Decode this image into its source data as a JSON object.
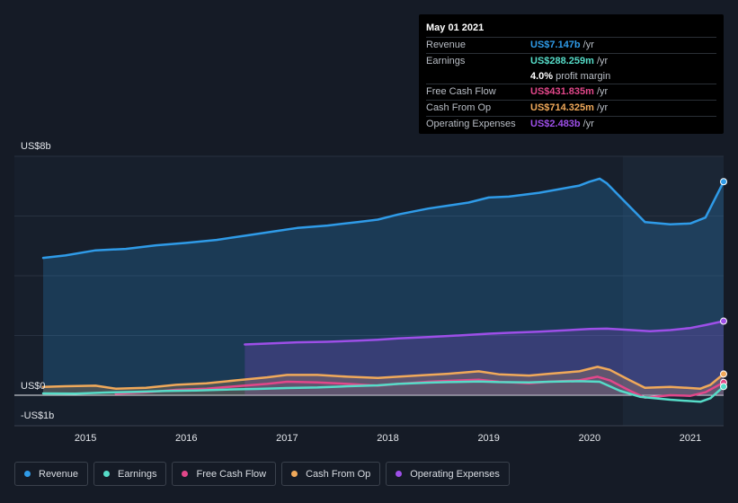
{
  "tooltip": {
    "date": "May 01 2021",
    "rows": [
      {
        "label": "Revenue",
        "value": "US$7.147b",
        "unit": "/yr",
        "color": "#2f9be8"
      },
      {
        "label": "Earnings",
        "value": "US$288.259m",
        "unit": "/yr",
        "color": "#56dcc8"
      },
      {
        "label": "",
        "value": "4.0%",
        "unit": "profit margin",
        "color": "#ffffff"
      },
      {
        "label": "Free Cash Flow",
        "value": "US$431.835m",
        "unit": "/yr",
        "color": "#e2478a"
      },
      {
        "label": "Cash From Op",
        "value": "US$714.325m",
        "unit": "/yr",
        "color": "#f0a95a"
      },
      {
        "label": "Operating Expenses",
        "value": "US$2.483b",
        "unit": "/yr",
        "color": "#9d4fe8"
      }
    ]
  },
  "legend": [
    {
      "label": "Revenue",
      "color": "#2f9be8"
    },
    {
      "label": "Earnings",
      "color": "#56dcc8"
    },
    {
      "label": "Free Cash Flow",
      "color": "#e2478a"
    },
    {
      "label": "Cash From Op",
      "color": "#f0a95a"
    },
    {
      "label": "Operating Expenses",
      "color": "#9d4fe8"
    }
  ],
  "chart_data": {
    "type": "area",
    "y_labels": [
      {
        "text": "US$8b",
        "value": 8
      },
      {
        "text": "US$0",
        "value": 0
      },
      {
        "text": "-US$1b",
        "value": -1
      }
    ],
    "ylim": [
      -1,
      8
    ],
    "x_ticks": [
      {
        "text": "2015",
        "value": 2015.0
      },
      {
        "text": "2016",
        "value": 2016.0
      },
      {
        "text": "2017",
        "value": 2017.0
      },
      {
        "text": "2018",
        "value": 2018.0
      },
      {
        "text": "2019",
        "value": 2019.0
      },
      {
        "text": "2020",
        "value": 2020.0
      },
      {
        "text": "2021",
        "value": 2021.0
      }
    ],
    "xlim": [
      2014.58,
      2021.33
    ],
    "forecast_start": 2020.33,
    "units": "US$ billions",
    "series": [
      {
        "name": "Revenue",
        "color": "#2f9be8",
        "fill": true,
        "points": [
          [
            2014.58,
            4.6
          ],
          [
            2014.8,
            4.68
          ],
          [
            2015.1,
            4.85
          ],
          [
            2015.4,
            4.9
          ],
          [
            2015.7,
            5.02
          ],
          [
            2016.0,
            5.1
          ],
          [
            2016.3,
            5.2
          ],
          [
            2016.6,
            5.35
          ],
          [
            2016.9,
            5.5
          ],
          [
            2017.1,
            5.6
          ],
          [
            2017.4,
            5.68
          ],
          [
            2017.7,
            5.8
          ],
          [
            2017.9,
            5.88
          ],
          [
            2018.1,
            6.05
          ],
          [
            2018.4,
            6.25
          ],
          [
            2018.6,
            6.35
          ],
          [
            2018.8,
            6.45
          ],
          [
            2019.0,
            6.62
          ],
          [
            2019.2,
            6.65
          ],
          [
            2019.5,
            6.78
          ],
          [
            2019.7,
            6.9
          ],
          [
            2019.9,
            7.02
          ],
          [
            2020.0,
            7.15
          ],
          [
            2020.1,
            7.25
          ],
          [
            2020.17,
            7.1
          ],
          [
            2020.33,
            6.55
          ],
          [
            2020.55,
            5.8
          ],
          [
            2020.8,
            5.72
          ],
          [
            2021.0,
            5.75
          ],
          [
            2021.15,
            5.95
          ],
          [
            2021.33,
            7.15
          ]
        ]
      },
      {
        "name": "Operating Expenses",
        "color": "#9d4fe8",
        "fill": true,
        "points": [
          [
            2016.58,
            1.7
          ],
          [
            2016.8,
            1.73
          ],
          [
            2017.1,
            1.77
          ],
          [
            2017.4,
            1.79
          ],
          [
            2017.7,
            1.83
          ],
          [
            2017.9,
            1.86
          ],
          [
            2018.1,
            1.9
          ],
          [
            2018.4,
            1.95
          ],
          [
            2018.7,
            2.0
          ],
          [
            2019.0,
            2.06
          ],
          [
            2019.2,
            2.09
          ],
          [
            2019.5,
            2.13
          ],
          [
            2019.8,
            2.18
          ],
          [
            2020.0,
            2.22
          ],
          [
            2020.17,
            2.23
          ],
          [
            2020.33,
            2.2
          ],
          [
            2020.6,
            2.14
          ],
          [
            2020.8,
            2.18
          ],
          [
            2021.0,
            2.25
          ],
          [
            2021.15,
            2.35
          ],
          [
            2021.33,
            2.48
          ]
        ]
      },
      {
        "name": "Cash From Op",
        "color": "#f0a95a",
        "fill": true,
        "points": [
          [
            2014.58,
            0.28
          ],
          [
            2014.8,
            0.3
          ],
          [
            2015.1,
            0.32
          ],
          [
            2015.3,
            0.22
          ],
          [
            2015.6,
            0.25
          ],
          [
            2015.9,
            0.35
          ],
          [
            2016.2,
            0.4
          ],
          [
            2016.5,
            0.5
          ],
          [
            2016.8,
            0.6
          ],
          [
            2017.0,
            0.68
          ],
          [
            2017.3,
            0.68
          ],
          [
            2017.6,
            0.62
          ],
          [
            2017.9,
            0.58
          ],
          [
            2018.1,
            0.62
          ],
          [
            2018.4,
            0.68
          ],
          [
            2018.6,
            0.72
          ],
          [
            2018.9,
            0.8
          ],
          [
            2019.1,
            0.7
          ],
          [
            2019.4,
            0.66
          ],
          [
            2019.6,
            0.72
          ],
          [
            2019.9,
            0.8
          ],
          [
            2020.08,
            0.95
          ],
          [
            2020.2,
            0.85
          ],
          [
            2020.4,
            0.5
          ],
          [
            2020.55,
            0.25
          ],
          [
            2020.8,
            0.28
          ],
          [
            2021.1,
            0.22
          ],
          [
            2021.2,
            0.35
          ],
          [
            2021.33,
            0.71
          ]
        ]
      },
      {
        "name": "Free Cash Flow",
        "color": "#e2478a",
        "fill": false,
        "points": [
          [
            2015.3,
            0.05
          ],
          [
            2015.6,
            0.1
          ],
          [
            2015.9,
            0.18
          ],
          [
            2016.2,
            0.22
          ],
          [
            2016.5,
            0.3
          ],
          [
            2016.8,
            0.38
          ],
          [
            2017.0,
            0.45
          ],
          [
            2017.3,
            0.43
          ],
          [
            2017.6,
            0.38
          ],
          [
            2017.9,
            0.32
          ],
          [
            2018.1,
            0.38
          ],
          [
            2018.4,
            0.45
          ],
          [
            2018.6,
            0.48
          ],
          [
            2018.9,
            0.52
          ],
          [
            2019.1,
            0.45
          ],
          [
            2019.4,
            0.4
          ],
          [
            2019.6,
            0.45
          ],
          [
            2019.9,
            0.5
          ],
          [
            2020.08,
            0.62
          ],
          [
            2020.2,
            0.5
          ],
          [
            2020.4,
            0.15
          ],
          [
            2020.55,
            -0.08
          ],
          [
            2020.8,
            0.0
          ],
          [
            2021.0,
            -0.02
          ],
          [
            2021.15,
            0.1
          ],
          [
            2021.33,
            0.43
          ]
        ]
      },
      {
        "name": "Earnings",
        "color": "#56dcc8",
        "fill": false,
        "points": [
          [
            2014.58,
            0.06
          ],
          [
            2014.9,
            0.05
          ],
          [
            2015.2,
            0.09
          ],
          [
            2015.5,
            0.11
          ],
          [
            2015.8,
            0.14
          ],
          [
            2016.1,
            0.16
          ],
          [
            2016.4,
            0.19
          ],
          [
            2016.7,
            0.21
          ],
          [
            2017.0,
            0.24
          ],
          [
            2017.3,
            0.26
          ],
          [
            2017.6,
            0.3
          ],
          [
            2017.9,
            0.33
          ],
          [
            2018.1,
            0.38
          ],
          [
            2018.4,
            0.42
          ],
          [
            2018.6,
            0.44
          ],
          [
            2018.9,
            0.46
          ],
          [
            2019.1,
            0.44
          ],
          [
            2019.4,
            0.43
          ],
          [
            2019.6,
            0.45
          ],
          [
            2019.9,
            0.47
          ],
          [
            2020.1,
            0.45
          ],
          [
            2020.3,
            0.15
          ],
          [
            2020.5,
            -0.05
          ],
          [
            2020.8,
            -0.15
          ],
          [
            2021.1,
            -0.22
          ],
          [
            2021.2,
            -0.1
          ],
          [
            2021.33,
            0.29
          ]
        ]
      }
    ]
  }
}
